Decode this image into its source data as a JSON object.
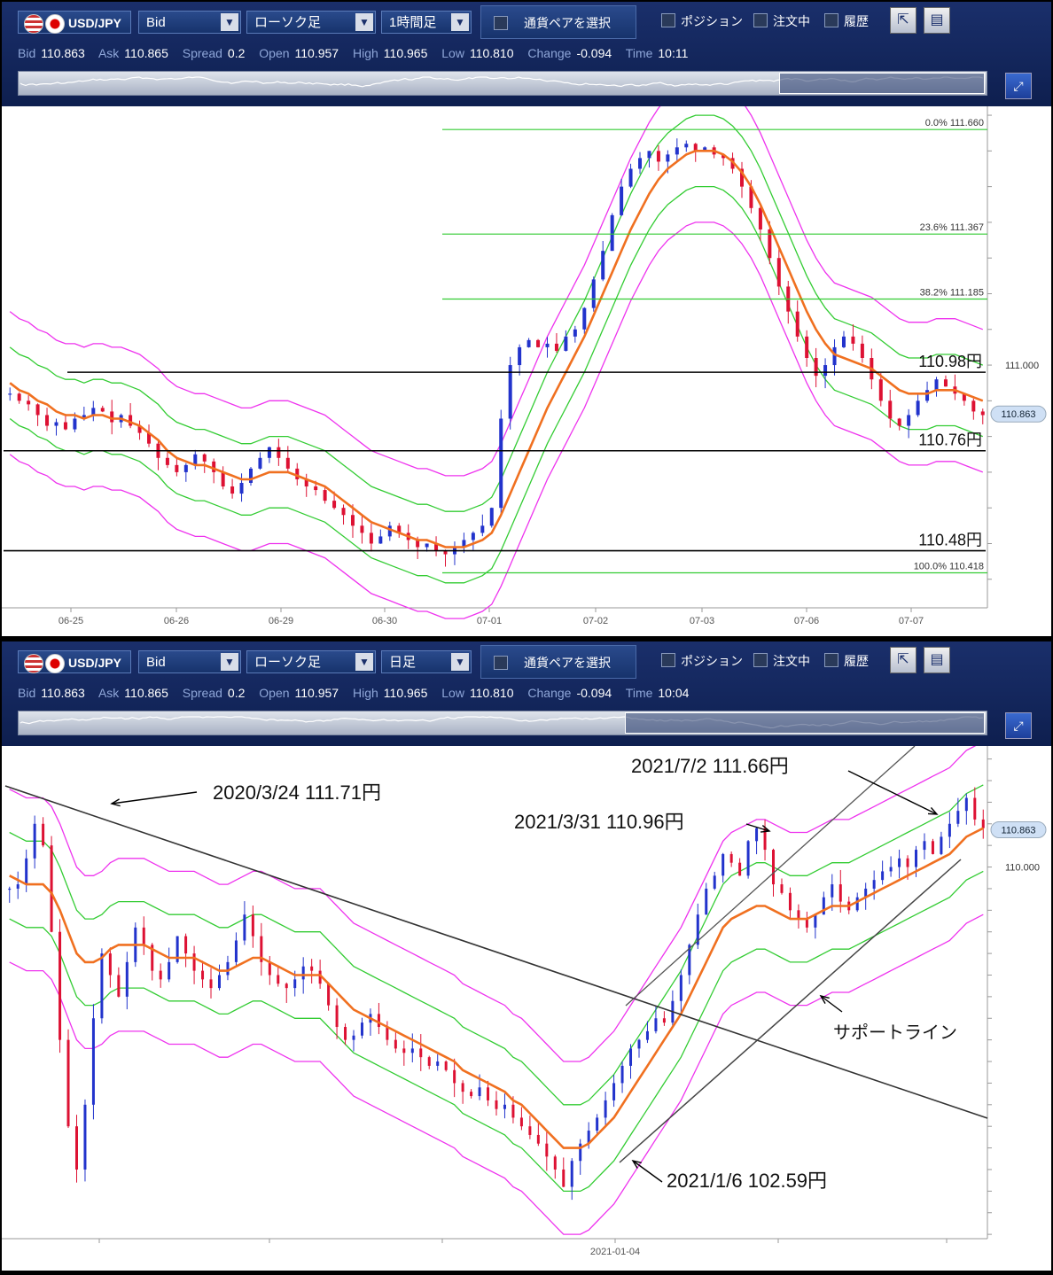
{
  "panels": [
    {
      "pair": "USD/JPY",
      "price_type": "Bid",
      "chart_style": "ローソク足",
      "timeframe": "1時間足",
      "select_pair": "通貨ペアを選択",
      "opt_position": "ポジション",
      "opt_orders": "注文中",
      "opt_history": "履歴",
      "quote": {
        "bid_label": "Bid",
        "bid": "110.863",
        "ask_label": "Ask",
        "ask": "110.865",
        "spread_label": "Spread",
        "spread": "0.2",
        "open_label": "Open",
        "open": "110.957",
        "high_label": "High",
        "high": "110.965",
        "low_label": "Low",
        "low": "110.810",
        "change_label": "Change",
        "change": "-0.094",
        "time_label": "Time",
        "time": "10:11"
      }
    },
    {
      "pair": "USD/JPY",
      "price_type": "Bid",
      "chart_style": "ローソク足",
      "timeframe": "日足",
      "select_pair": "通貨ペアを選択",
      "opt_position": "ポジション",
      "opt_orders": "注文中",
      "opt_history": "履歴",
      "quote": {
        "bid_label": "Bid",
        "bid": "110.863",
        "ask_label": "Ask",
        "ask": "110.865",
        "spread_label": "Spread",
        "spread": "0.2",
        "open_label": "Open",
        "open": "110.957",
        "high_label": "High",
        "high": "110.965",
        "low_label": "Low",
        "low": "110.810",
        "change_label": "Change",
        "change": "-0.094",
        "time_label": "Time",
        "time": "10:04"
      }
    }
  ],
  "colors": {
    "bull": "#2233cc",
    "bear": "#dd1133",
    "ma": "#f07020",
    "band_inner": "#33cc33",
    "band_outer": "#ee33ee",
    "fib": "#33cc33",
    "current_price_bg": "#cfe0f5"
  },
  "chart_data": [
    {
      "type": "candlestick",
      "timeframe": "1時間足",
      "x_tick_labels": [
        "06-25",
        "06-26",
        "06-29",
        "06-30",
        "07-01",
        "07-02",
        "07-03",
        "07-06",
        "07-07"
      ],
      "ylim": [
        110.32,
        111.72
      ],
      "y_tick_labels": [
        "111.000"
      ],
      "current_price": "110.863",
      "close_series": [
        110.92,
        110.9,
        110.89,
        110.86,
        110.83,
        110.84,
        110.82,
        110.85,
        110.86,
        110.88,
        110.87,
        110.84,
        110.86,
        110.83,
        110.81,
        110.78,
        110.74,
        110.72,
        110.7,
        110.72,
        110.75,
        110.73,
        110.7,
        110.66,
        110.64,
        110.67,
        110.71,
        110.74,
        110.77,
        110.74,
        110.71,
        110.68,
        110.66,
        110.65,
        110.62,
        110.6,
        110.58,
        110.55,
        110.53,
        110.5,
        110.52,
        110.55,
        110.53,
        110.51,
        110.49,
        110.5,
        110.48,
        110.47,
        110.49,
        110.51,
        110.53,
        110.55,
        110.6,
        110.85,
        111.0,
        111.05,
        111.07,
        111.05,
        111.06,
        111.04,
        111.08,
        111.1,
        111.16,
        111.24,
        111.32,
        111.42,
        111.5,
        111.55,
        111.58,
        111.6,
        111.57,
        111.59,
        111.61,
        111.62,
        111.6,
        111.61,
        111.59,
        111.58,
        111.55,
        111.5,
        111.44,
        111.38,
        111.3,
        111.22,
        111.15,
        111.08,
        111.02,
        110.97,
        111.0,
        111.05,
        111.08,
        111.06,
        111.02,
        110.96,
        110.9,
        110.85,
        110.83,
        110.86,
        110.9,
        110.93,
        110.96,
        110.94,
        110.92,
        110.9,
        110.87,
        110.86
      ],
      "moving_average": [
        110.95,
        110.93,
        110.92,
        110.9,
        110.89,
        110.87,
        110.86,
        110.86,
        110.85,
        110.86,
        110.86,
        110.85,
        110.85,
        110.84,
        110.83,
        110.81,
        110.79,
        110.76,
        110.74,
        110.73,
        110.72,
        110.72,
        110.71,
        110.7,
        110.69,
        110.68,
        110.68,
        110.69,
        110.7,
        110.7,
        110.7,
        110.69,
        110.68,
        110.67,
        110.66,
        110.64,
        110.62,
        110.6,
        110.58,
        110.56,
        110.55,
        110.54,
        110.53,
        110.52,
        110.51,
        110.51,
        110.5,
        110.49,
        110.49,
        110.49,
        110.5,
        110.51,
        110.53,
        110.58,
        110.64,
        110.7,
        110.76,
        110.82,
        110.88,
        110.93,
        110.98,
        111.03,
        111.08,
        111.14,
        111.2,
        111.26,
        111.32,
        111.38,
        111.43,
        111.48,
        111.52,
        111.55,
        111.57,
        111.59,
        111.6,
        111.6,
        111.6,
        111.59,
        111.57,
        111.54,
        111.5,
        111.45,
        111.39,
        111.33,
        111.27,
        111.21,
        111.15,
        111.1,
        111.06,
        111.03,
        111.02,
        111.01,
        111.0,
        110.99,
        110.97,
        110.95,
        110.93,
        110.92,
        110.92,
        110.92,
        110.93,
        110.93,
        110.93,
        110.92,
        110.91,
        110.9
      ],
      "bollinger_bandwidth": 0.1,
      "horizontal_lines": [
        {
          "label": "110.98円",
          "value": 110.98
        },
        {
          "label": "110.76円",
          "value": 110.76
        },
        {
          "label": "110.48円",
          "value": 110.48
        }
      ],
      "fibonacci": [
        {
          "label": "0.0%  111.660",
          "value": 111.66
        },
        {
          "label": "23.6%  111.367",
          "value": 111.367
        },
        {
          "label": "38.2%  111.185",
          "value": 111.185
        },
        {
          "label": "100.0%  110.418",
          "value": 110.418
        }
      ]
    },
    {
      "type": "candlestick",
      "timeframe": "日足",
      "x_tick_labels": [
        "2021-01-04"
      ],
      "ylim": [
        101.4,
        112.8
      ],
      "y_tick_labels": [
        "110.000"
      ],
      "current_price": "110.863",
      "close_series": [
        109.5,
        109.6,
        110.2,
        111.0,
        110.5,
        108.5,
        106.0,
        104.0,
        103.0,
        104.5,
        106.5,
        108.0,
        107.5,
        107.0,
        107.8,
        108.6,
        108.2,
        107.6,
        107.4,
        107.8,
        108.4,
        108.0,
        107.6,
        107.4,
        107.2,
        107.5,
        107.8,
        108.3,
        108.9,
        108.4,
        107.8,
        107.5,
        107.3,
        107.2,
        107.4,
        107.7,
        107.6,
        107.3,
        106.8,
        106.3,
        106.0,
        106.1,
        106.4,
        106.6,
        106.3,
        106.0,
        105.8,
        105.7,
        105.8,
        105.6,
        105.4,
        105.5,
        105.3,
        105.0,
        104.8,
        104.7,
        104.9,
        104.6,
        104.4,
        104.5,
        104.2,
        104.0,
        103.8,
        103.6,
        103.3,
        103.0,
        102.6,
        103.2,
        103.6,
        103.9,
        104.2,
        104.6,
        105.0,
        105.4,
        105.8,
        106.0,
        106.2,
        106.5,
        106.4,
        106.9,
        107.5,
        108.2,
        108.9,
        109.5,
        109.8,
        110.3,
        110.1,
        109.8,
        110.6,
        110.9,
        110.4,
        109.6,
        109.4,
        109.0,
        108.8,
        108.6,
        108.9,
        109.3,
        109.6,
        109.2,
        109.0,
        109.3,
        109.5,
        109.7,
        109.9,
        110.0,
        110.2,
        110.0,
        110.4,
        110.6,
        110.3,
        110.7,
        111.0,
        111.3,
        111.6,
        111.1,
        110.9
      ],
      "moving_average": [
        109.8,
        109.7,
        109.6,
        109.6,
        109.6,
        109.4,
        109.0,
        108.5,
        108.0,
        107.8,
        107.8,
        107.9,
        108.1,
        108.2,
        108.2,
        108.2,
        108.2,
        108.1,
        108.0,
        107.9,
        107.9,
        107.9,
        107.9,
        107.8,
        107.7,
        107.6,
        107.6,
        107.7,
        107.8,
        107.9,
        107.9,
        107.8,
        107.7,
        107.6,
        107.5,
        107.5,
        107.5,
        107.5,
        107.3,
        107.1,
        106.9,
        106.7,
        106.6,
        106.5,
        106.4,
        106.3,
        106.2,
        106.1,
        106.0,
        105.9,
        105.8,
        105.7,
        105.6,
        105.5,
        105.3,
        105.2,
        105.1,
        105.0,
        104.9,
        104.8,
        104.6,
        104.5,
        104.3,
        104.1,
        103.9,
        103.7,
        103.5,
        103.5,
        103.5,
        103.6,
        103.8,
        104.0,
        104.2,
        104.5,
        104.8,
        105.1,
        105.4,
        105.7,
        106.0,
        106.3,
        106.6,
        107.0,
        107.4,
        107.8,
        108.2,
        108.6,
        108.8,
        108.9,
        109.0,
        109.1,
        109.1,
        109.0,
        108.9,
        108.8,
        108.8,
        108.8,
        108.9,
        109.0,
        109.1,
        109.1,
        109.1,
        109.2,
        109.3,
        109.4,
        109.5,
        109.6,
        109.7,
        109.8,
        109.9,
        110.0,
        110.1,
        110.2,
        110.3,
        110.5,
        110.7,
        110.8,
        110.9
      ],
      "bollinger_bandwidth": 1.0,
      "annotations": [
        {
          "label": "2020/3/24  111.71円",
          "value": 111.71
        },
        {
          "label": "2021/3/31  110.96円",
          "value": 110.96
        },
        {
          "label": "2021/7/2  111.66円",
          "value": 111.66
        },
        {
          "label": "2021/1/6  102.59円",
          "value": 102.59
        },
        {
          "label": "サポートライン"
        }
      ]
    }
  ]
}
